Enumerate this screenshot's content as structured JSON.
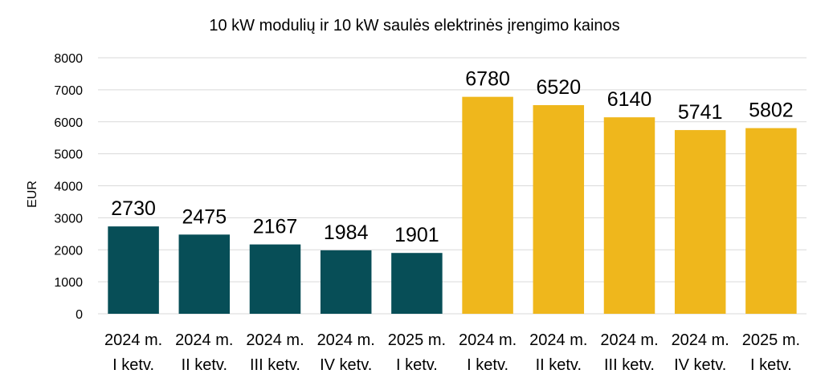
{
  "chart_data": {
    "type": "bar",
    "title": "10 kW modulių ir 10 kW saulės elektrinės įrengimo kainos",
    "ylabel": "EUR",
    "xlabel": "",
    "ylim": [
      0,
      8000
    ],
    "yticks": [
      0,
      1000,
      2000,
      3000,
      4000,
      5000,
      6000,
      7000,
      8000
    ],
    "grid": true,
    "categories": [
      [
        "2024 m.",
        "I ketv."
      ],
      [
        "2024 m.",
        "II ketv."
      ],
      [
        "2024 m.",
        "III ketv."
      ],
      [
        "2024 m.",
        "IV ketv."
      ],
      [
        "2025 m.",
        "I ketv."
      ],
      [
        "2024 m.",
        "I ketv."
      ],
      [
        "2024 m.",
        "II ketv."
      ],
      [
        "2024 m.",
        "III ketv."
      ],
      [
        "2024 m.",
        "IV ketv."
      ],
      [
        "2025 m.",
        "I ketv."
      ]
    ],
    "values": [
      2730,
      2475,
      2167,
      1984,
      1901,
      6780,
      6520,
      6140,
      5741,
      5802
    ],
    "colors": [
      "#074e57",
      "#074e57",
      "#074e57",
      "#074e57",
      "#074e57",
      "#efb71c",
      "#efb71c",
      "#efb71c",
      "#efb71c",
      "#efb71c"
    ],
    "grid_color": "#d9d9d9"
  }
}
